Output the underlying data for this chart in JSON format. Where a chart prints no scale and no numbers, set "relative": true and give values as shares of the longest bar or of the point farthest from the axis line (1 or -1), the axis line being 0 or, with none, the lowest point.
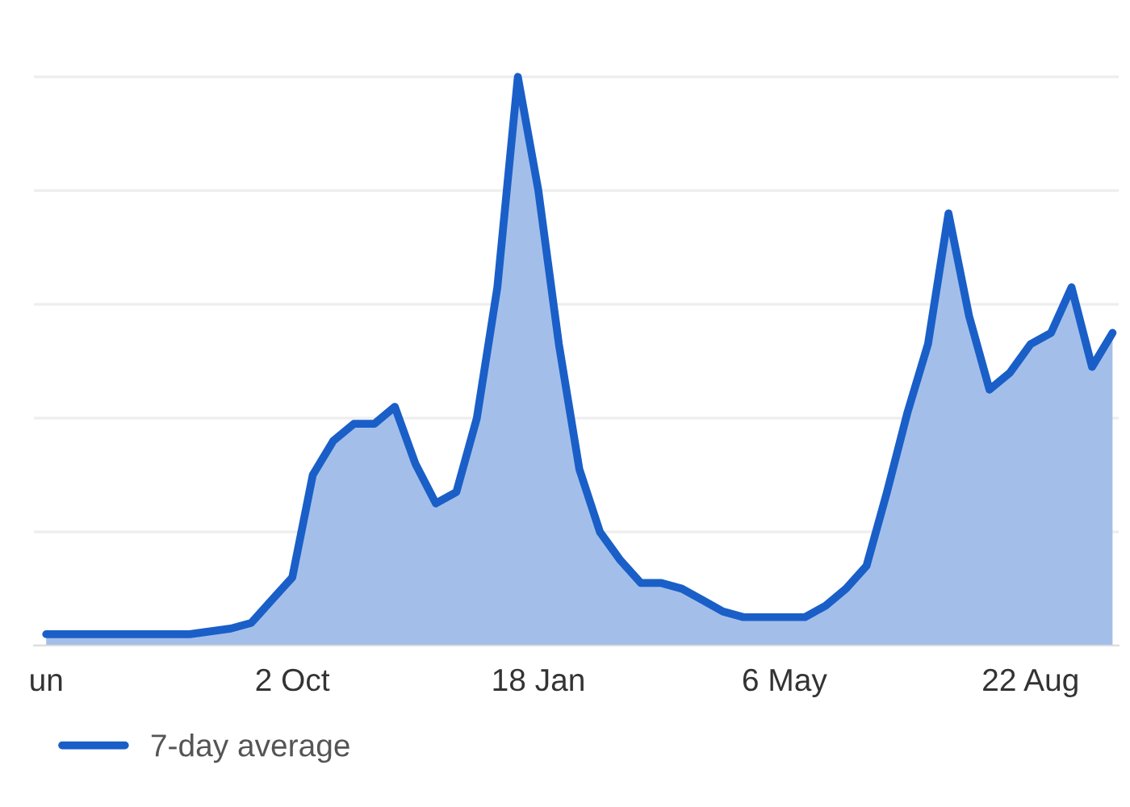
{
  "chart_data": {
    "type": "area",
    "relative": true,
    "grid": "y",
    "legend": "bottom left",
    "line_style": "solid",
    "categories": [
      "un",
      null,
      null,
      null,
      null,
      null,
      null,
      null,
      null,
      null,
      null,
      null,
      "2 Oct",
      null,
      null,
      null,
      null,
      null,
      null,
      null,
      null,
      null,
      null,
      null,
      "18 Jan",
      null,
      null,
      null,
      null,
      null,
      null,
      null,
      null,
      null,
      null,
      null,
      "6 May",
      null,
      null,
      null,
      null,
      null,
      null,
      null,
      null,
      null,
      null,
      null,
      "22 Aug",
      null,
      null,
      null,
      null
    ],
    "series": [
      {
        "name": "7-day average",
        "color": "#1a5fc8",
        "values": [
          0.02,
          0.02,
          0.02,
          0.02,
          0.02,
          0.02,
          0.02,
          0.02,
          0.025,
          0.03,
          0.04,
          0.08,
          0.12,
          0.3,
          0.36,
          0.39,
          0.39,
          0.42,
          0.32,
          0.25,
          0.27,
          0.4,
          0.63,
          1.0,
          0.8,
          0.53,
          0.31,
          0.2,
          0.15,
          0.11,
          0.11,
          0.1,
          0.08,
          0.06,
          0.05,
          0.05,
          0.05,
          0.05,
          0.07,
          0.1,
          0.14,
          0.27,
          0.41,
          0.53,
          0.76,
          0.58,
          0.45,
          0.48,
          0.53,
          0.55,
          0.63,
          0.49,
          0.55
        ]
      }
    ]
  }
}
